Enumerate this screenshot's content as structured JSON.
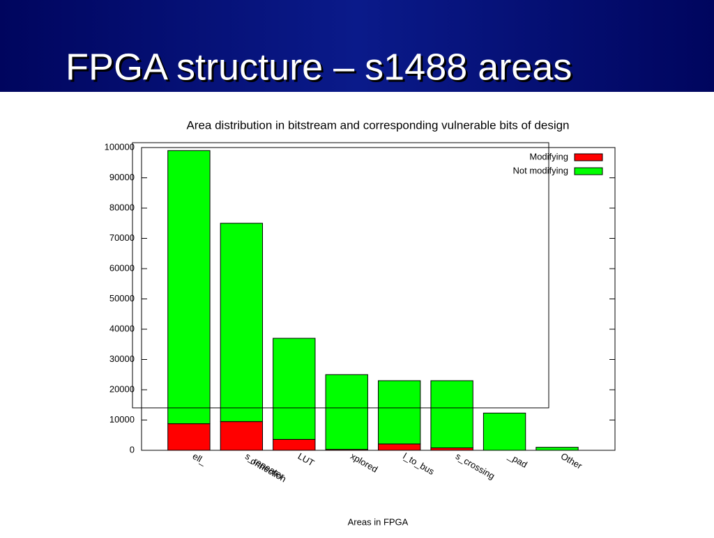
{
  "slide_title": "FPGA structure – s1488 areas",
  "chart_data": {
    "type": "stacked_bar",
    "title": "Area distribution in bitstream and corresponding vulnerable bits of design",
    "x_label": "Areas in FPGA",
    "categories": [
      "ell_",
      "s_repeater",
      "LUT",
      "xplored",
      "l_to_bus",
      "s_crossing",
      "_pad",
      "Other"
    ],
    "annotations": [
      "onnection"
    ],
    "series": [
      {
        "name": "Modifying",
        "color": "#ff0000",
        "values": [
          8800,
          9500,
          3600,
          300,
          2100,
          800,
          0,
          0
        ]
      },
      {
        "name": "Not modifying",
        "color": "#00ff00",
        "values": [
          90200,
          65500,
          33400,
          24700,
          20900,
          22200,
          12300,
          1000
        ]
      }
    ],
    "ylim": [
      0,
      100000
    ],
    "yticks": [
      0,
      10000,
      20000,
      30000,
      40000,
      50000,
      60000,
      70000,
      80000,
      90000,
      100000
    ],
    "legend": "top-right"
  }
}
